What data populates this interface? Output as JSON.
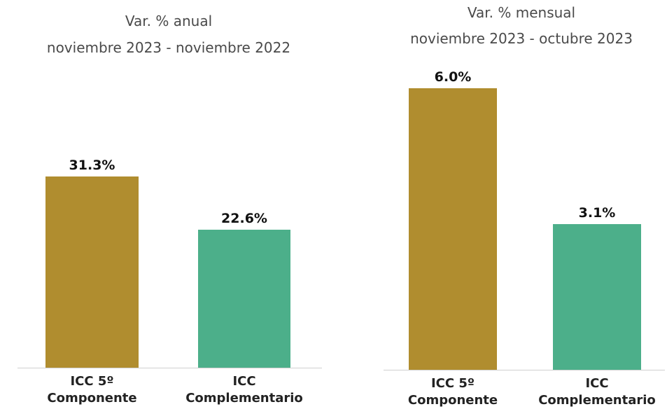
{
  "chart_data": [
    {
      "type": "bar",
      "title": "Var. % anual",
      "subtitle": "noviembre 2023 - noviembre 2022",
      "categories": [
        "ICC 5º Componente",
        "ICC Complementario"
      ],
      "values": [
        31.3,
        22.6
      ],
      "value_labels": [
        "31.3%",
        "22.6%"
      ],
      "colors": [
        "#b08d2f",
        "#4caf8a"
      ],
      "ylim": [
        0,
        36
      ]
    },
    {
      "type": "bar",
      "title": "Var. % mensual",
      "subtitle": "noviembre 2023 - octubre 2023",
      "categories": [
        "ICC 5º Componente",
        "ICC Complementario"
      ],
      "values": [
        6.0,
        3.1
      ],
      "value_labels": [
        "6.0%",
        "3.1%"
      ],
      "colors": [
        "#b08d2f",
        "#4caf8a"
      ],
      "ylim": [
        0,
        6.5
      ]
    }
  ]
}
